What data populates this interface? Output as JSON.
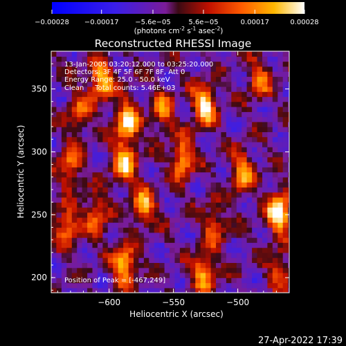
{
  "chart_data": {
    "type": "heatmap",
    "title": "Reconstructed RHESSI Image",
    "xlabel": "Heliocentric X (arcsec)",
    "ylabel": "Heliocentric Y (arcsec)",
    "xlim": [
      -645,
      -460
    ],
    "ylim": [
      188,
      380
    ],
    "xticks": [
      {
        "v": -600,
        "l": "−600"
      },
      {
        "v": -550,
        "l": "−550"
      },
      {
        "v": -500,
        "l": "−500"
      }
    ],
    "yticks": [
      {
        "v": 200,
        "l": "200"
      },
      {
        "v": 250,
        "l": "250"
      },
      {
        "v": 300,
        "l": "300"
      },
      {
        "v": 350,
        "l": "350"
      }
    ],
    "colorbar": {
      "label_main": "(photons cm",
      "label_exp1": "-2",
      "label_mid": " s",
      "label_exp2": "-1",
      "label_end": " asec",
      "label_exp3": "-2",
      "label_close": ")",
      "range": [
        -0.00028,
        0.00028
      ],
      "ticks": [
        {
          "v": -0.00028,
          "l": "−0.00028"
        },
        {
          "v": -0.00017,
          "l": "−0.00017"
        },
        {
          "v": -5.6e-05,
          "l": "−5.6e−05"
        },
        {
          "v": 5.6e-05,
          "l": "5.6e−05"
        },
        {
          "v": 0.00017,
          "l": "0.00017"
        },
        {
          "v": 0.00028,
          "l": "0.00028"
        }
      ]
    },
    "annotations": [
      "13-Jan-2005 03:20:12.000 to 03:25:20.000",
      "Detectors: 3F 4F 5F 6F 7F 8F, Att 0",
      "Energy Range: 25.0 - 50.0 keV",
      "Clean     Total counts: 5.46E+03"
    ],
    "peak_label": "Position of Peak = [-467,249]",
    "peak": [
      -467,
      249
    ],
    "sources": [
      {
        "x": -470,
        "y": 250,
        "v": 1.0
      },
      {
        "x": -528,
        "y": 335,
        "v": 0.9
      },
      {
        "x": -608,
        "y": 355,
        "v": 0.8
      },
      {
        "x": -588,
        "y": 322,
        "v": 0.85
      },
      {
        "x": -590,
        "y": 290,
        "v": 0.75
      },
      {
        "x": -632,
        "y": 288,
        "v": 0.6
      },
      {
        "x": -545,
        "y": 292,
        "v": 0.7
      },
      {
        "x": -575,
        "y": 255,
        "v": 0.65
      },
      {
        "x": -590,
        "y": 208,
        "v": 0.8
      },
      {
        "x": -528,
        "y": 203,
        "v": 0.7
      },
      {
        "x": -498,
        "y": 282,
        "v": 0.65
      },
      {
        "x": -560,
        "y": 330,
        "v": 0.55
      },
      {
        "x": -485,
        "y": 355,
        "v": 0.5
      },
      {
        "x": -635,
        "y": 240,
        "v": 0.6
      },
      {
        "x": -470,
        "y": 205,
        "v": 0.45
      },
      {
        "x": -520,
        "y": 240,
        "v": 0.5
      },
      {
        "x": -612,
        "y": 248,
        "v": 0.55
      },
      {
        "x": -625,
        "y": 330,
        "v": 0.45
      }
    ],
    "background_level": -0.15
  },
  "footer": {
    "timestamp": "27-Apr-2022 17:39"
  }
}
